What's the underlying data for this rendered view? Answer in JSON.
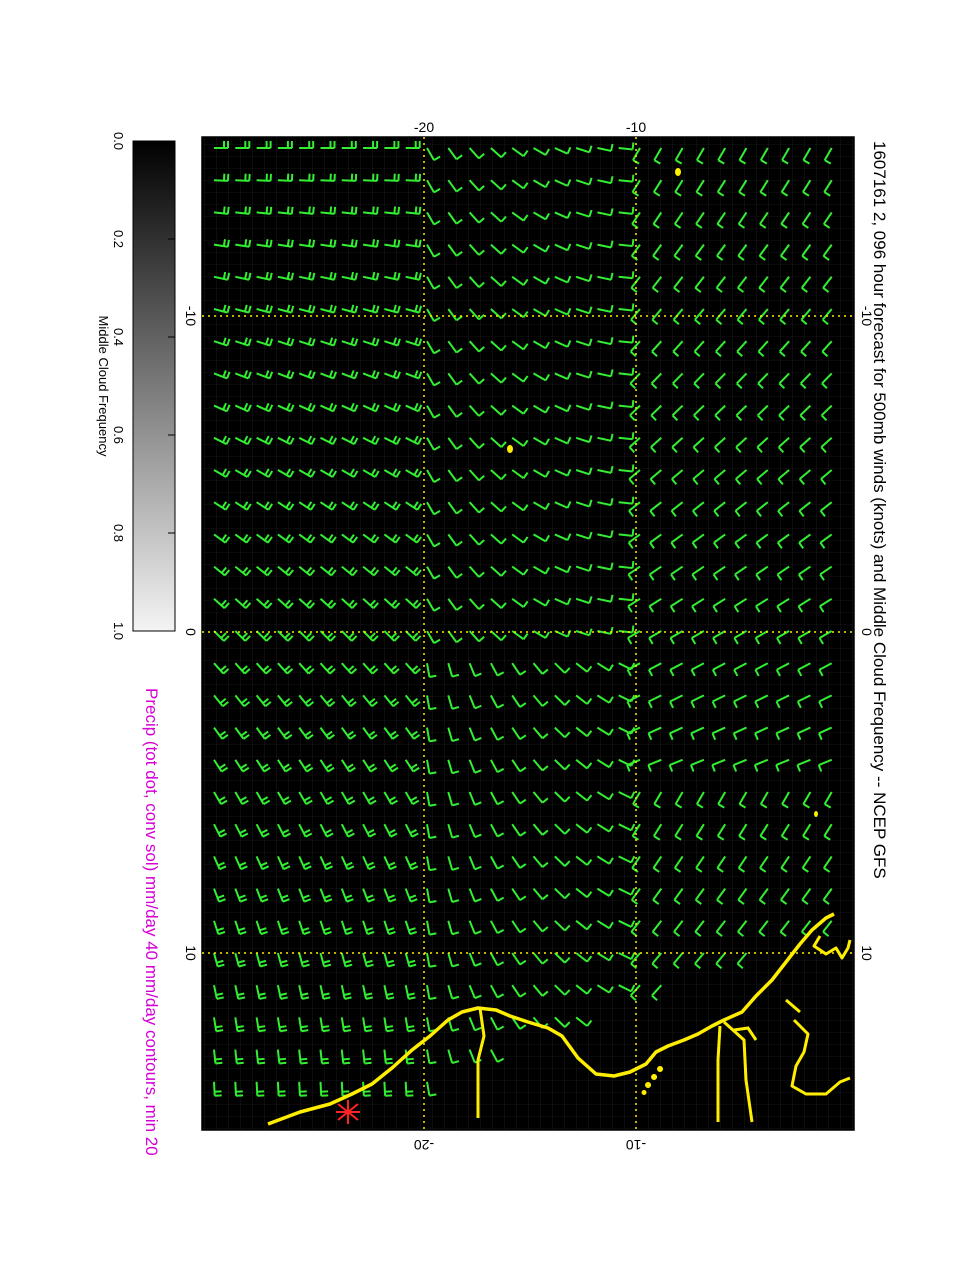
{
  "map": {
    "title": "1607161 2, 096 hour forecast for 500mb winds (knots) and Middle Cloud Frequency -- NCEP GFS",
    "subtitle": "Precip (tot dot, conv sol) mm/day 40 mm/day contours, min 20",
    "lon_ticks": [
      "-10",
      "0",
      "10"
    ],
    "lat_ticks": [
      "-20",
      "-10"
    ],
    "background_color": "#000000",
    "wind_barb_color": "#33ee33",
    "coast_color": "#ffee00",
    "grid_color": "#ffee00",
    "marker_color": "#ff2222"
  },
  "colorbar": {
    "label": "Middle Cloud Frequency",
    "ticks": [
      "0.0",
      "0.2",
      "0.4",
      "0.6",
      "0.8",
      "1.0"
    ],
    "min": 0,
    "max": 1,
    "colors": [
      "#000000",
      "#ffffff"
    ]
  }
}
